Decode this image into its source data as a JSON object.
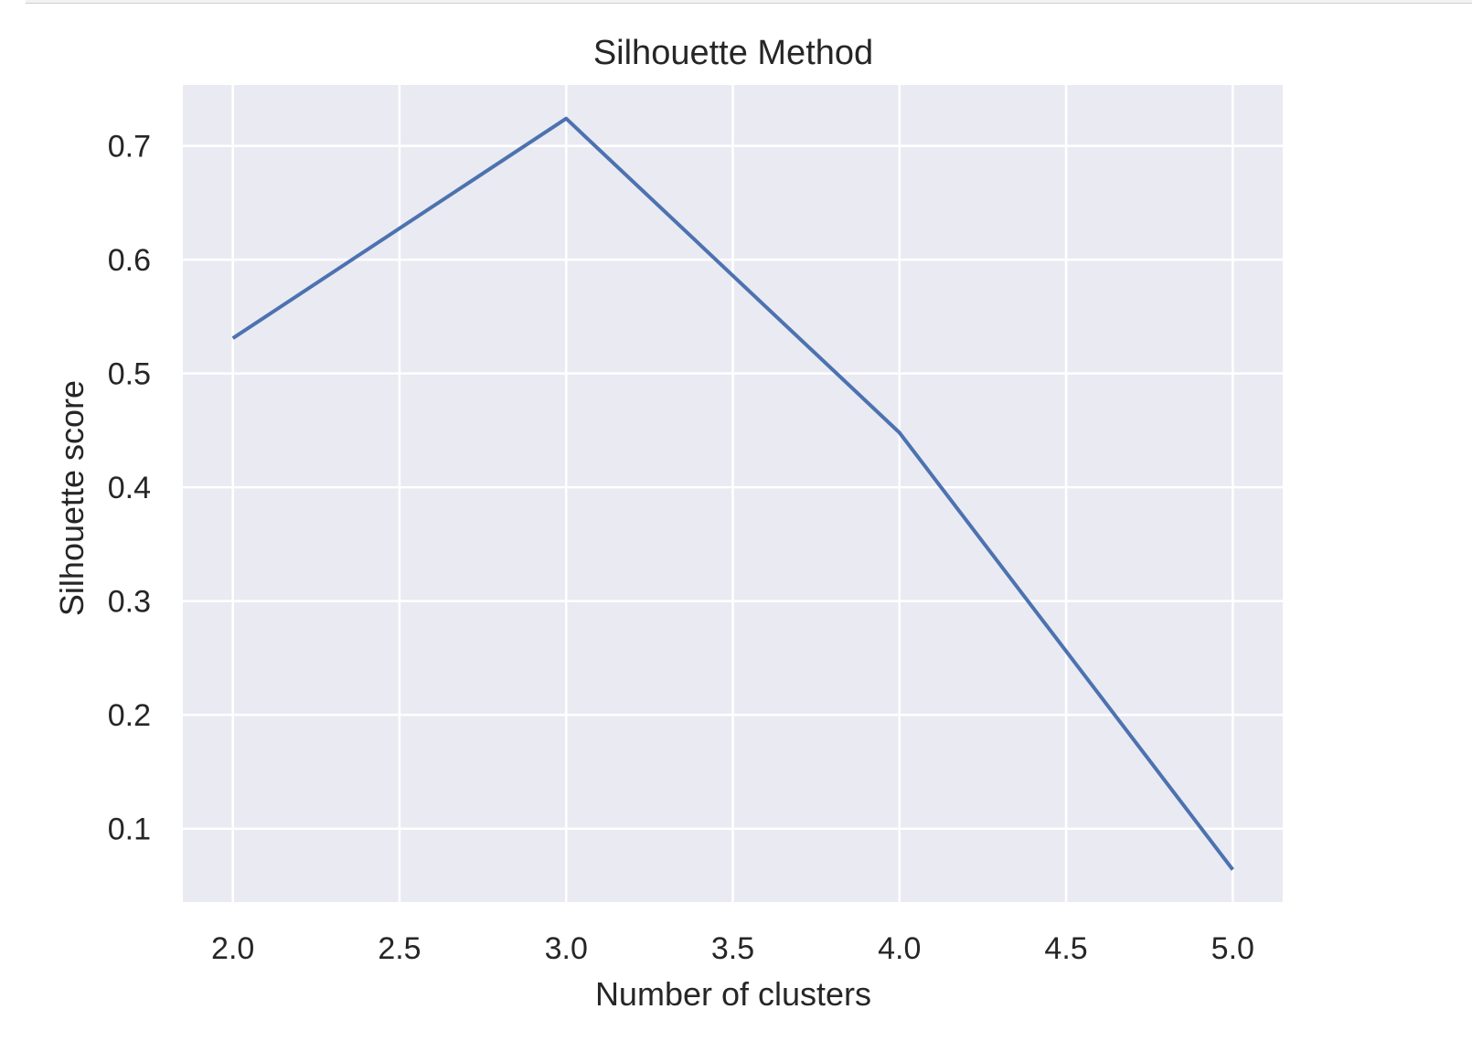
{
  "chart_data": {
    "type": "line",
    "title": "Silhouette Method",
    "xlabel": "Number of clusters",
    "ylabel": "Silhouette score",
    "x": [
      2,
      3,
      4,
      5
    ],
    "series": [
      {
        "values": [
          0.531,
          0.724,
          0.448,
          0.064
        ],
        "color": "#4c72b0"
      }
    ],
    "xlim": [
      1.85,
      5.15
    ],
    "ylim": [
      0.0355,
      0.7535
    ],
    "xticks": [
      2.0,
      2.5,
      3.0,
      3.5,
      4.0,
      4.5,
      5.0
    ],
    "xtick_labels": [
      "2.0",
      "2.5",
      "3.0",
      "3.5",
      "4.0",
      "4.5",
      "5.0"
    ],
    "yticks": [
      0.1,
      0.2,
      0.3,
      0.4,
      0.5,
      0.6,
      0.7
    ],
    "ytick_labels": [
      "0.1",
      "0.2",
      "0.3",
      "0.4",
      "0.5",
      "0.6",
      "0.7"
    ],
    "grid": true,
    "style": {
      "plot_background": "#eaeaf2",
      "grid_color": "#ffffff",
      "text_color": "#262626"
    }
  }
}
